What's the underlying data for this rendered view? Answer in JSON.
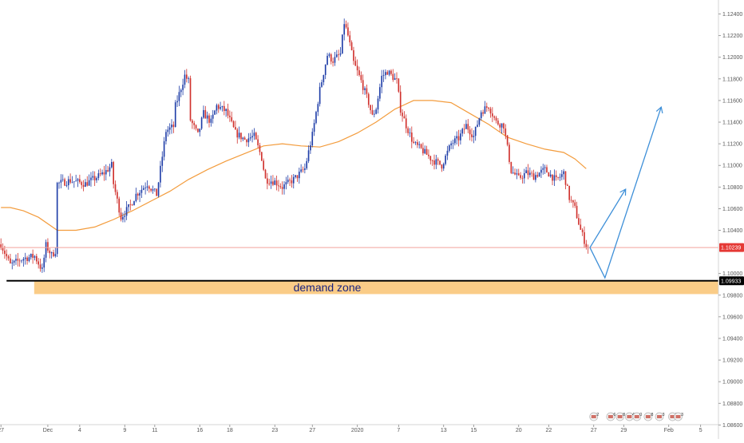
{
  "chart_data": {
    "type": "candlestick",
    "grid": false,
    "colors": {
      "up": "#1f3ea8",
      "down": "#d0312d",
      "moving_average": "#f39c3d",
      "projection": "#3d8fd8",
      "zone_fill": "#f9c77a",
      "zone_line": "#000000",
      "current_price_line": "#f3a29c",
      "current_price_tag": "#e53935",
      "support_tag": "#000000"
    },
    "ylim": [
      1.0861,
      1.125
    ],
    "y_ticks": [
      {
        "value": 1.124,
        "label": "1.12400"
      },
      {
        "value": 1.122,
        "label": "1.12200"
      },
      {
        "value": 1.12,
        "label": "1.12000"
      },
      {
        "value": 1.118,
        "label": "1.11800"
      },
      {
        "value": 1.116,
        "label": "1.11600"
      },
      {
        "value": 1.114,
        "label": "1.11400"
      },
      {
        "value": 1.112,
        "label": "1.11200"
      },
      {
        "value": 1.11,
        "label": "1.11000"
      },
      {
        "value": 1.108,
        "label": "1.10800"
      },
      {
        "value": 1.106,
        "label": "1.10600"
      },
      {
        "value": 1.104,
        "label": "1.10400"
      },
      {
        "value": 1.1,
        "label": "1.10000"
      },
      {
        "value": 1.098,
        "label": "1.09800"
      },
      {
        "value": 1.096,
        "label": "1.09600"
      },
      {
        "value": 1.094,
        "label": "1.09400"
      },
      {
        "value": 1.092,
        "label": "1.09200"
      },
      {
        "value": 1.09,
        "label": "1.09000"
      },
      {
        "value": 1.088,
        "label": "1.08800"
      },
      {
        "value": 1.086,
        "label": "1.08600"
      }
    ],
    "x_ticks": [
      {
        "index": 0,
        "label": "27"
      },
      {
        "index": 25,
        "label": "Dec"
      },
      {
        "index": 42,
        "label": "4"
      },
      {
        "index": 66,
        "label": "9"
      },
      {
        "index": 82,
        "label": "11"
      },
      {
        "index": 106,
        "label": "16"
      },
      {
        "index": 122,
        "label": "18"
      },
      {
        "index": 146,
        "label": "23"
      },
      {
        "index": 166,
        "label": "27"
      },
      {
        "index": 190,
        "label": "2020"
      },
      {
        "index": 212,
        "label": "7"
      },
      {
        "index": 236,
        "label": "13"
      },
      {
        "index": 252,
        "label": "15"
      },
      {
        "index": 276,
        "label": "20"
      },
      {
        "index": 292,
        "label": "22"
      },
      {
        "index": 316,
        "label": "27"
      },
      {
        "index": 332,
        "label": "29"
      },
      {
        "index": 356,
        "label": "Feb"
      },
      {
        "index": 373,
        "label": "5"
      }
    ],
    "x_count": 383,
    "price_anchors": [
      [
        0,
        1.1027
      ],
      [
        5,
        1.1008
      ],
      [
        12,
        1.1014
      ],
      [
        18,
        1.1016
      ],
      [
        22,
        1.1003
      ],
      [
        24,
        1.1026
      ],
      [
        27,
        1.1017
      ],
      [
        29,
        1.1021
      ],
      [
        30,
        1.1083
      ],
      [
        37,
        1.1086
      ],
      [
        45,
        1.1083
      ],
      [
        55,
        1.1093
      ],
      [
        59,
        1.11
      ],
      [
        60,
        1.1083
      ],
      [
        64,
        1.1052
      ],
      [
        69,
        1.1063
      ],
      [
        72,
        1.1073
      ],
      [
        78,
        1.1083
      ],
      [
        83,
        1.1073
      ],
      [
        88,
        1.1132
      ],
      [
        92,
        1.1136
      ],
      [
        93,
        1.1155
      ],
      [
        98,
        1.1183
      ],
      [
        100,
        1.1178
      ],
      [
        101,
        1.1142
      ],
      [
        105,
        1.1128
      ],
      [
        108,
        1.1148
      ],
      [
        112,
        1.114
      ],
      [
        115,
        1.1155
      ],
      [
        120,
        1.115
      ],
      [
        125,
        1.113
      ],
      [
        130,
        1.1124
      ],
      [
        135,
        1.1127
      ],
      [
        139,
        1.1107
      ],
      [
        141,
        1.1087
      ],
      [
        146,
        1.1085
      ],
      [
        150,
        1.108
      ],
      [
        156,
        1.1087
      ],
      [
        162,
        1.1097
      ],
      [
        166,
        1.1128
      ],
      [
        170,
        1.117
      ],
      [
        174,
        1.1202
      ],
      [
        177,
        1.1197
      ],
      [
        181,
        1.1203
      ],
      [
        183,
        1.1232
      ],
      [
        185,
        1.122
      ],
      [
        188,
        1.1195
      ],
      [
        192,
        1.1178
      ],
      [
        196,
        1.1158
      ],
      [
        198,
        1.1145
      ],
      [
        200,
        1.1153
      ],
      [
        203,
        1.1182
      ],
      [
        206,
        1.1187
      ],
      [
        211,
        1.1178
      ],
      [
        213,
        1.1152
      ],
      [
        216,
        1.1137
      ],
      [
        220,
        1.112
      ],
      [
        224,
        1.1115
      ],
      [
        230,
        1.1105
      ],
      [
        235,
        1.11
      ],
      [
        240,
        1.112
      ],
      [
        244,
        1.1125
      ],
      [
        248,
        1.1137
      ],
      [
        252,
        1.1127
      ],
      [
        256,
        1.115
      ],
      [
        260,
        1.1155
      ],
      [
        264,
        1.114
      ],
      [
        268,
        1.1137
      ],
      [
        272,
        1.1095
      ],
      [
        276,
        1.1088
      ],
      [
        280,
        1.1093
      ],
      [
        284,
        1.109
      ],
      [
        290,
        1.1096
      ],
      [
        296,
        1.1086
      ],
      [
        300,
        1.1093
      ],
      [
        303,
        1.107
      ],
      [
        306,
        1.106
      ],
      [
        309,
        1.104
      ],
      [
        312,
        1.1026
      ],
      [
        313,
        1.1024
      ]
    ],
    "moving_average": [
      [
        0,
        1.1061
      ],
      [
        5,
        1.1061
      ],
      [
        12,
        1.1058
      ],
      [
        20,
        1.1052
      ],
      [
        30,
        1.104
      ],
      [
        40,
        1.104
      ],
      [
        50,
        1.1043
      ],
      [
        60,
        1.105
      ],
      [
        70,
        1.1058
      ],
      [
        80,
        1.1067
      ],
      [
        90,
        1.1076
      ],
      [
        100,
        1.1087
      ],
      [
        110,
        1.1096
      ],
      [
        120,
        1.1104
      ],
      [
        130,
        1.1111
      ],
      [
        140,
        1.1118
      ],
      [
        150,
        1.112
      ],
      [
        160,
        1.1118
      ],
      [
        170,
        1.1117
      ],
      [
        180,
        1.1122
      ],
      [
        190,
        1.113
      ],
      [
        200,
        1.114
      ],
      [
        210,
        1.1152
      ],
      [
        220,
        1.116
      ],
      [
        230,
        1.116
      ],
      [
        240,
        1.1158
      ],
      [
        250,
        1.1148
      ],
      [
        260,
        1.1138
      ],
      [
        270,
        1.1126
      ],
      [
        280,
        1.112
      ],
      [
        290,
        1.1115
      ],
      [
        300,
        1.1112
      ],
      [
        306,
        1.1106
      ],
      [
        312,
        1.1097
      ]
    ],
    "projection_paths": [
      [
        [
          314,
          1.1024
        ],
        [
          333,
          1.1078
        ]
      ],
      [
        [
          314,
          1.1024
        ],
        [
          322,
          1.0996
        ],
        [
          352,
          1.1154
        ]
      ]
    ],
    "current_price": {
      "value": 1.1024,
      "label": "1.10239"
    },
    "support_level": {
      "value": 1.09933,
      "label": "1.09933"
    },
    "demand_zone": {
      "top": 1.09933,
      "bottom": 1.0981,
      "start_index": 19,
      "label": "demand zone"
    }
  },
  "event_markers": [
    {
      "index": 316,
      "label": "2"
    },
    {
      "index": 325,
      "label": "6"
    },
    {
      "index": 330,
      "label": "8"
    },
    {
      "index": 335,
      "label": "4"
    },
    {
      "index": 339,
      "label": "0"
    },
    {
      "index": 345,
      "label": "8"
    },
    {
      "index": 351,
      "label": "3"
    },
    {
      "index": 358,
      "label": "7"
    },
    {
      "index": 361,
      "label": "3"
    }
  ]
}
